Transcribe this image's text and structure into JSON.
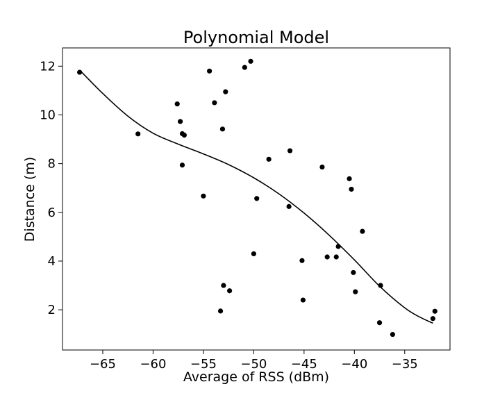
{
  "chart_data": {
    "type": "scatter",
    "title": "Polynomial Model",
    "xlabel": "Average of RSS (dBm)",
    "ylabel": "Distance (m)",
    "xlim": [
      -69,
      -30.5
    ],
    "ylim": [
      0.35,
      12.75
    ],
    "xticks": [
      -65,
      -60,
      -55,
      -50,
      -45,
      -40,
      -35
    ],
    "xtick_labels": [
      "−65",
      "−60",
      "−55",
      "−50",
      "−45",
      "−40",
      "−35"
    ],
    "yticks": [
      2,
      4,
      6,
      8,
      10,
      12
    ],
    "ytick_labels": [
      "2",
      "4",
      "6",
      "8",
      "10",
      "12"
    ],
    "grid": false,
    "points": [
      {
        "x": -67.3,
        "y": 11.75
      },
      {
        "x": -61.5,
        "y": 9.22
      },
      {
        "x": -57.6,
        "y": 10.45
      },
      {
        "x": -57.3,
        "y": 9.73
      },
      {
        "x": -57.1,
        "y": 9.23
      },
      {
        "x": -56.9,
        "y": 9.17
      },
      {
        "x": -57.1,
        "y": 7.94
      },
      {
        "x": -55.0,
        "y": 6.67
      },
      {
        "x": -54.4,
        "y": 11.8
      },
      {
        "x": -53.9,
        "y": 10.5
      },
      {
        "x": -53.1,
        "y": 9.42
      },
      {
        "x": -52.8,
        "y": 10.95
      },
      {
        "x": -50.9,
        "y": 11.95
      },
      {
        "x": -50.3,
        "y": 12.2
      },
      {
        "x": -53.3,
        "y": 1.95
      },
      {
        "x": -53.0,
        "y": 3.0
      },
      {
        "x": -52.4,
        "y": 2.78
      },
      {
        "x": -50.0,
        "y": 4.3
      },
      {
        "x": -49.7,
        "y": 6.57
      },
      {
        "x": -48.5,
        "y": 8.18
      },
      {
        "x": -46.4,
        "y": 8.53
      },
      {
        "x": -46.5,
        "y": 6.24
      },
      {
        "x": -45.2,
        "y": 4.02
      },
      {
        "x": -45.1,
        "y": 2.4
      },
      {
        "x": -43.2,
        "y": 7.86
      },
      {
        "x": -42.7,
        "y": 4.17
      },
      {
        "x": -41.8,
        "y": 4.17
      },
      {
        "x": -41.6,
        "y": 4.6
      },
      {
        "x": -40.5,
        "y": 7.38
      },
      {
        "x": -40.3,
        "y": 6.95
      },
      {
        "x": -40.1,
        "y": 3.53
      },
      {
        "x": -39.9,
        "y": 2.74
      },
      {
        "x": -39.2,
        "y": 5.22
      },
      {
        "x": -37.4,
        "y": 3.0
      },
      {
        "x": -37.5,
        "y": 1.47
      },
      {
        "x": -36.2,
        "y": 0.99
      },
      {
        "x": -32.2,
        "y": 1.64
      },
      {
        "x": -32.0,
        "y": 1.94
      }
    ],
    "fit_curve": [
      {
        "x": -67.2,
        "y": 11.8
      },
      {
        "x": -65,
        "y": 10.88
      },
      {
        "x": -62.5,
        "y": 9.95
      },
      {
        "x": -60,
        "y": 9.25
      },
      {
        "x": -57.5,
        "y": 8.8
      },
      {
        "x": -55,
        "y": 8.4
      },
      {
        "x": -52.5,
        "y": 7.96
      },
      {
        "x": -50,
        "y": 7.42
      },
      {
        "x": -47.5,
        "y": 6.76
      },
      {
        "x": -45,
        "y": 5.97
      },
      {
        "x": -42.5,
        "y": 5.06
      },
      {
        "x": -40,
        "y": 4.05
      },
      {
        "x": -37.5,
        "y": 2.97
      },
      {
        "x": -35,
        "y": 2.08
      },
      {
        "x": -33.5,
        "y": 1.7
      },
      {
        "x": -32.2,
        "y": 1.45
      }
    ],
    "marker_color": "#000000",
    "line_color": "#000000"
  }
}
